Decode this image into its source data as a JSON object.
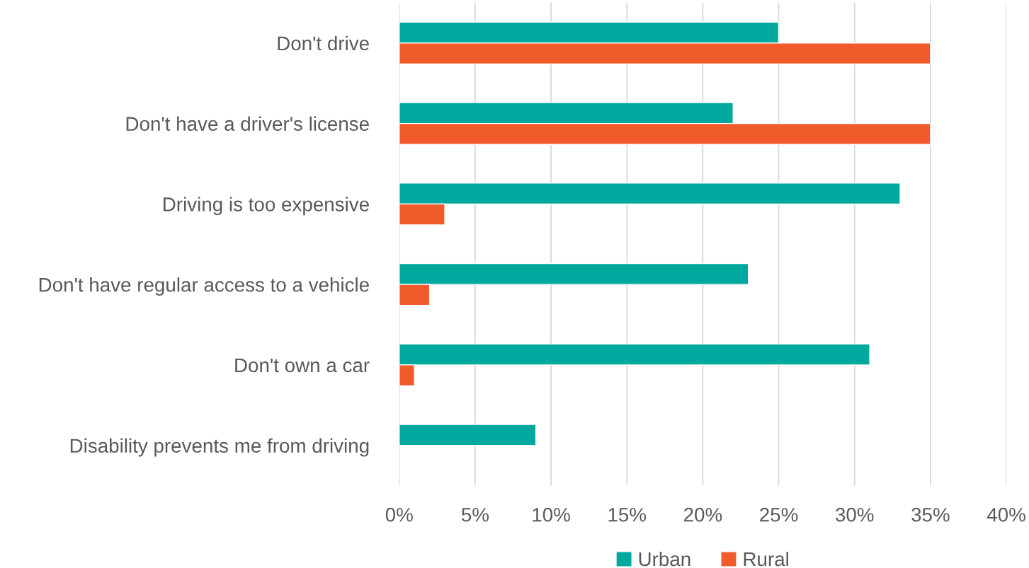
{
  "chart_data": {
    "type": "bar",
    "orientation": "horizontal",
    "categories": [
      "Don't drive",
      "Don't have a driver's license",
      "Driving is too expensive",
      "Don't have regular access to a vehicle",
      "Don't own a car",
      "Disability prevents me from driving"
    ],
    "series": [
      {
        "name": "Urban",
        "color": "#00a89d",
        "values": [
          25,
          22,
          33,
          23,
          31,
          9
        ]
      },
      {
        "name": "Rural",
        "color": "#f15a2b",
        "values": [
          35,
          35,
          3,
          2,
          1,
          null
        ]
      }
    ],
    "xlim": [
      0,
      40
    ],
    "xticks": [
      {
        "value": 0,
        "label": "0%"
      },
      {
        "value": 5,
        "label": "5%"
      },
      {
        "value": 10,
        "label": "10%"
      },
      {
        "value": 15,
        "label": "15%"
      },
      {
        "value": 20,
        "label": "20%"
      },
      {
        "value": 25,
        "label": "25%"
      },
      {
        "value": 30,
        "label": "30%"
      },
      {
        "value": 35,
        "label": "35%"
      },
      {
        "value": 40,
        "label": "40%"
      }
    ],
    "grid": "x",
    "legend": "bottom"
  }
}
